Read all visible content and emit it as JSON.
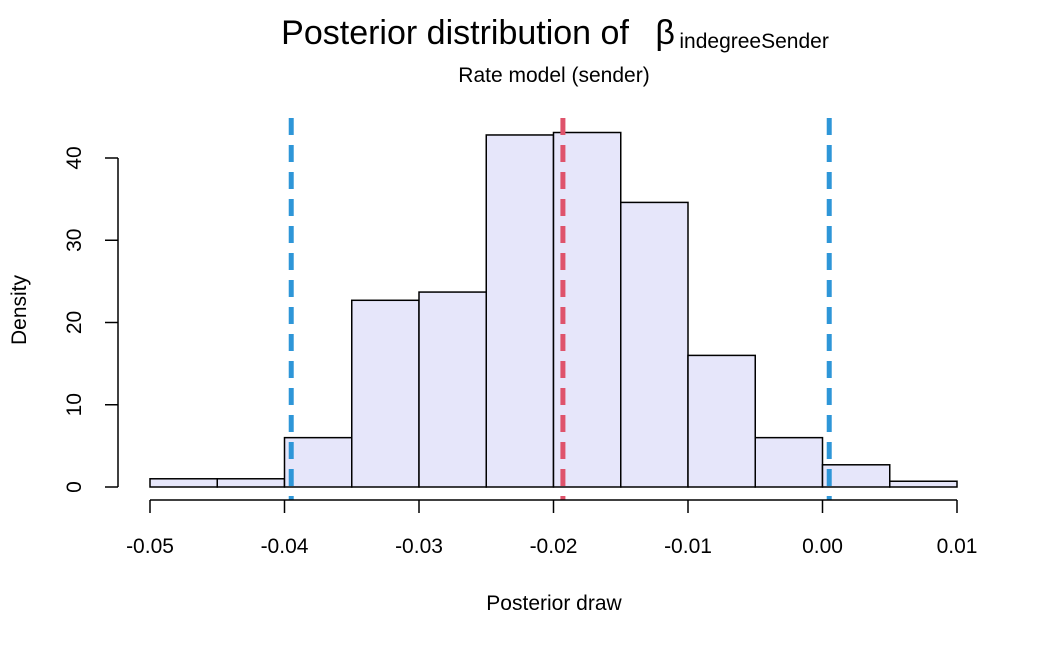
{
  "chart_data": {
    "type": "bar",
    "title": {
      "prefix": "Posterior distribution of",
      "symbol": "β",
      "subscript": "indegreeSender"
    },
    "subtitle": "Rate model (sender)",
    "xlabel": "Posterior draw",
    "ylabel": "Density",
    "xlim": [
      -0.05,
      0.01
    ],
    "ylim": [
      0,
      40
    ],
    "xticks": [
      -0.05,
      -0.04,
      -0.03,
      -0.02,
      -0.01,
      0.0,
      0.01
    ],
    "xtick_labels": [
      "-0.05",
      "-0.04",
      "-0.03",
      "-0.02",
      "-0.01",
      "0.00",
      "0.01"
    ],
    "yticks": [
      0,
      10,
      20,
      30,
      40
    ],
    "ytick_labels": [
      "0",
      "10",
      "20",
      "30",
      "40"
    ],
    "bins": [
      {
        "start": -0.05,
        "end": -0.045,
        "density": 1.0
      },
      {
        "start": -0.045,
        "end": -0.04,
        "density": 1.0
      },
      {
        "start": -0.04,
        "end": -0.035,
        "density": 6.0
      },
      {
        "start": -0.035,
        "end": -0.03,
        "density": 22.7
      },
      {
        "start": -0.03,
        "end": -0.025,
        "density": 23.7
      },
      {
        "start": -0.025,
        "end": -0.02,
        "density": 42.8
      },
      {
        "start": -0.02,
        "end": -0.015,
        "density": 43.1
      },
      {
        "start": -0.015,
        "end": -0.01,
        "density": 34.6
      },
      {
        "start": -0.01,
        "end": -0.005,
        "density": 16.0
      },
      {
        "start": -0.005,
        "end": 0.0,
        "density": 6.0
      },
      {
        "start": 0.0,
        "end": 0.005,
        "density": 2.7
      },
      {
        "start": 0.005,
        "end": 0.01,
        "density": 0.7
      }
    ],
    "reference_lines": [
      {
        "value": -0.0395,
        "color": "#2e96d8"
      },
      {
        "value": -0.0193,
        "color": "#df536b"
      },
      {
        "value": 0.0005,
        "color": "#2e96d8"
      }
    ],
    "colors": {
      "bar_fill": "#e6e6fa",
      "bar_stroke": "#000000"
    },
    "grid": false,
    "legend": "none"
  }
}
